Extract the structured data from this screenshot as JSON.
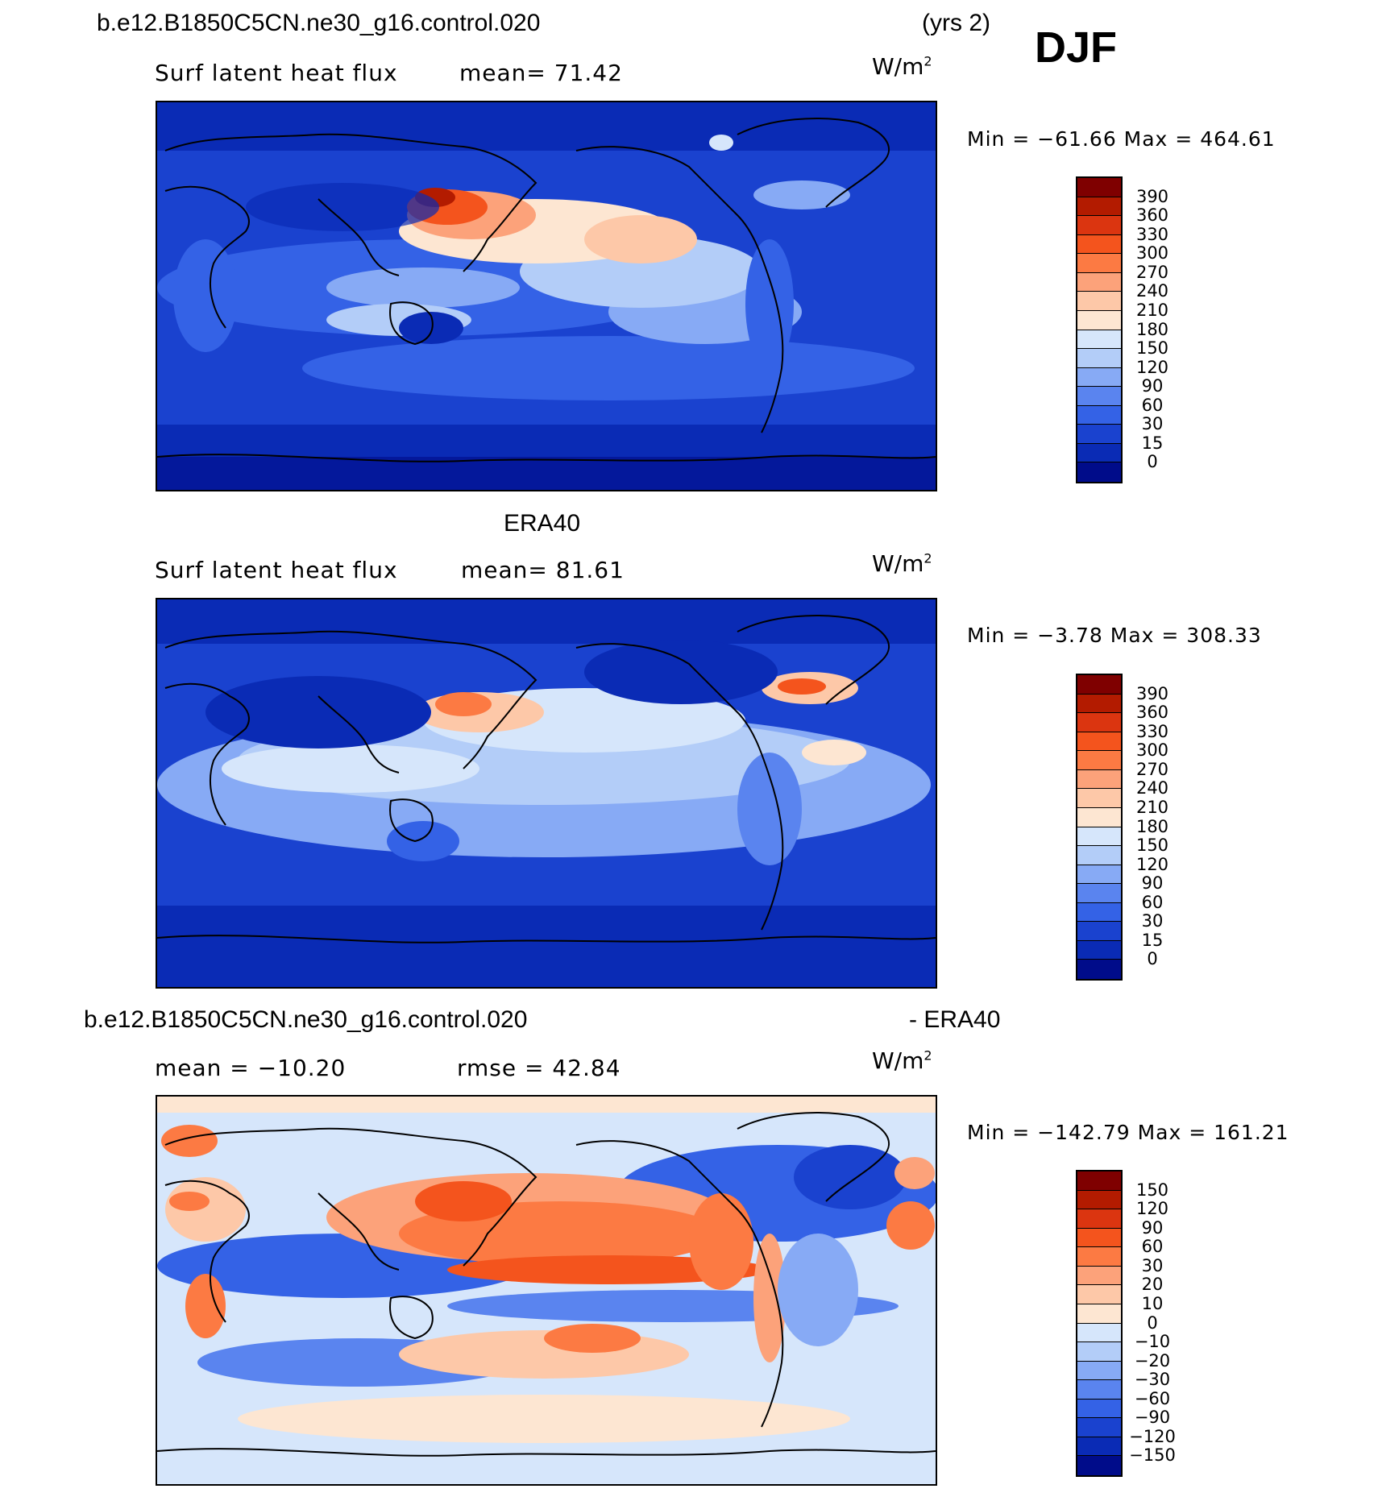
{
  "header": {
    "case_name": "b.e12.B1850C5CN.ne30_g16.control.020",
    "years": "(yrs 2)",
    "season": "DJF"
  },
  "panels": [
    {
      "variable": "Surf latent heat flux",
      "stat1": "mean=   71.42",
      "units": "W/m",
      "units_exp": "2",
      "minmax": "Min  =  −61.66  Max  =  464.61",
      "colorbar_labels": [
        "390",
        "360",
        "330",
        "300",
        "270",
        "240",
        "210",
        "180",
        "150",
        "120",
        "90",
        "60",
        "30",
        "15",
        "0"
      ],
      "colorbar_colors": [
        "#7f0000",
        "#b31b00",
        "#db3510",
        "#f4541d",
        "#fc7a43",
        "#fca27a",
        "#fdc8a8",
        "#fde6d2",
        "#d6e6fb",
        "#b3cdf8",
        "#87aaf5",
        "#5a84ef",
        "#3462e6",
        "#1a42cf",
        "#0a2bb5",
        "#000c8a"
      ]
    },
    {
      "title": "ERA40",
      "variable": "Surf latent heat flux",
      "stat1": "mean=   81.61",
      "units": "W/m",
      "units_exp": "2",
      "minmax": "Min  =    −3.78  Max  =  308.33",
      "colorbar_labels": [
        "390",
        "360",
        "330",
        "300",
        "270",
        "240",
        "210",
        "180",
        "150",
        "120",
        "90",
        "60",
        "30",
        "15",
        "0"
      ],
      "colorbar_colors": [
        "#7f0000",
        "#b31b00",
        "#db3510",
        "#f4541d",
        "#fc7a43",
        "#fca27a",
        "#fdc8a8",
        "#fde6d2",
        "#d6e6fb",
        "#b3cdf8",
        "#87aaf5",
        "#5a84ef",
        "#3462e6",
        "#1a42cf",
        "#0a2bb5",
        "#000c8a"
      ]
    },
    {
      "title_left": "b.e12.B1850C5CN.ne30_g16.control.020",
      "title_right": "- ERA40",
      "stat1": "mean  =  −10.20",
      "stat2": "rmse  =    42.84",
      "units": "W/m",
      "units_exp": "2",
      "minmax": "Min  =  −142.79  Max  =  161.21",
      "colorbar_labels": [
        "150",
        "120",
        "90",
        "60",
        "30",
        "20",
        "10",
        "0",
        "−10",
        "−20",
        "−30",
        "−60",
        "−90",
        "−120",
        "−150"
      ],
      "colorbar_colors": [
        "#7f0000",
        "#b31b00",
        "#db3510",
        "#f4541d",
        "#fc7a43",
        "#fca27a",
        "#fdc8a8",
        "#fde6d2",
        "#d6e6fb",
        "#b3cdf8",
        "#87aaf5",
        "#5a84ef",
        "#3462e6",
        "#1a42cf",
        "#0a2bb5",
        "#000c8a"
      ]
    }
  ]
}
